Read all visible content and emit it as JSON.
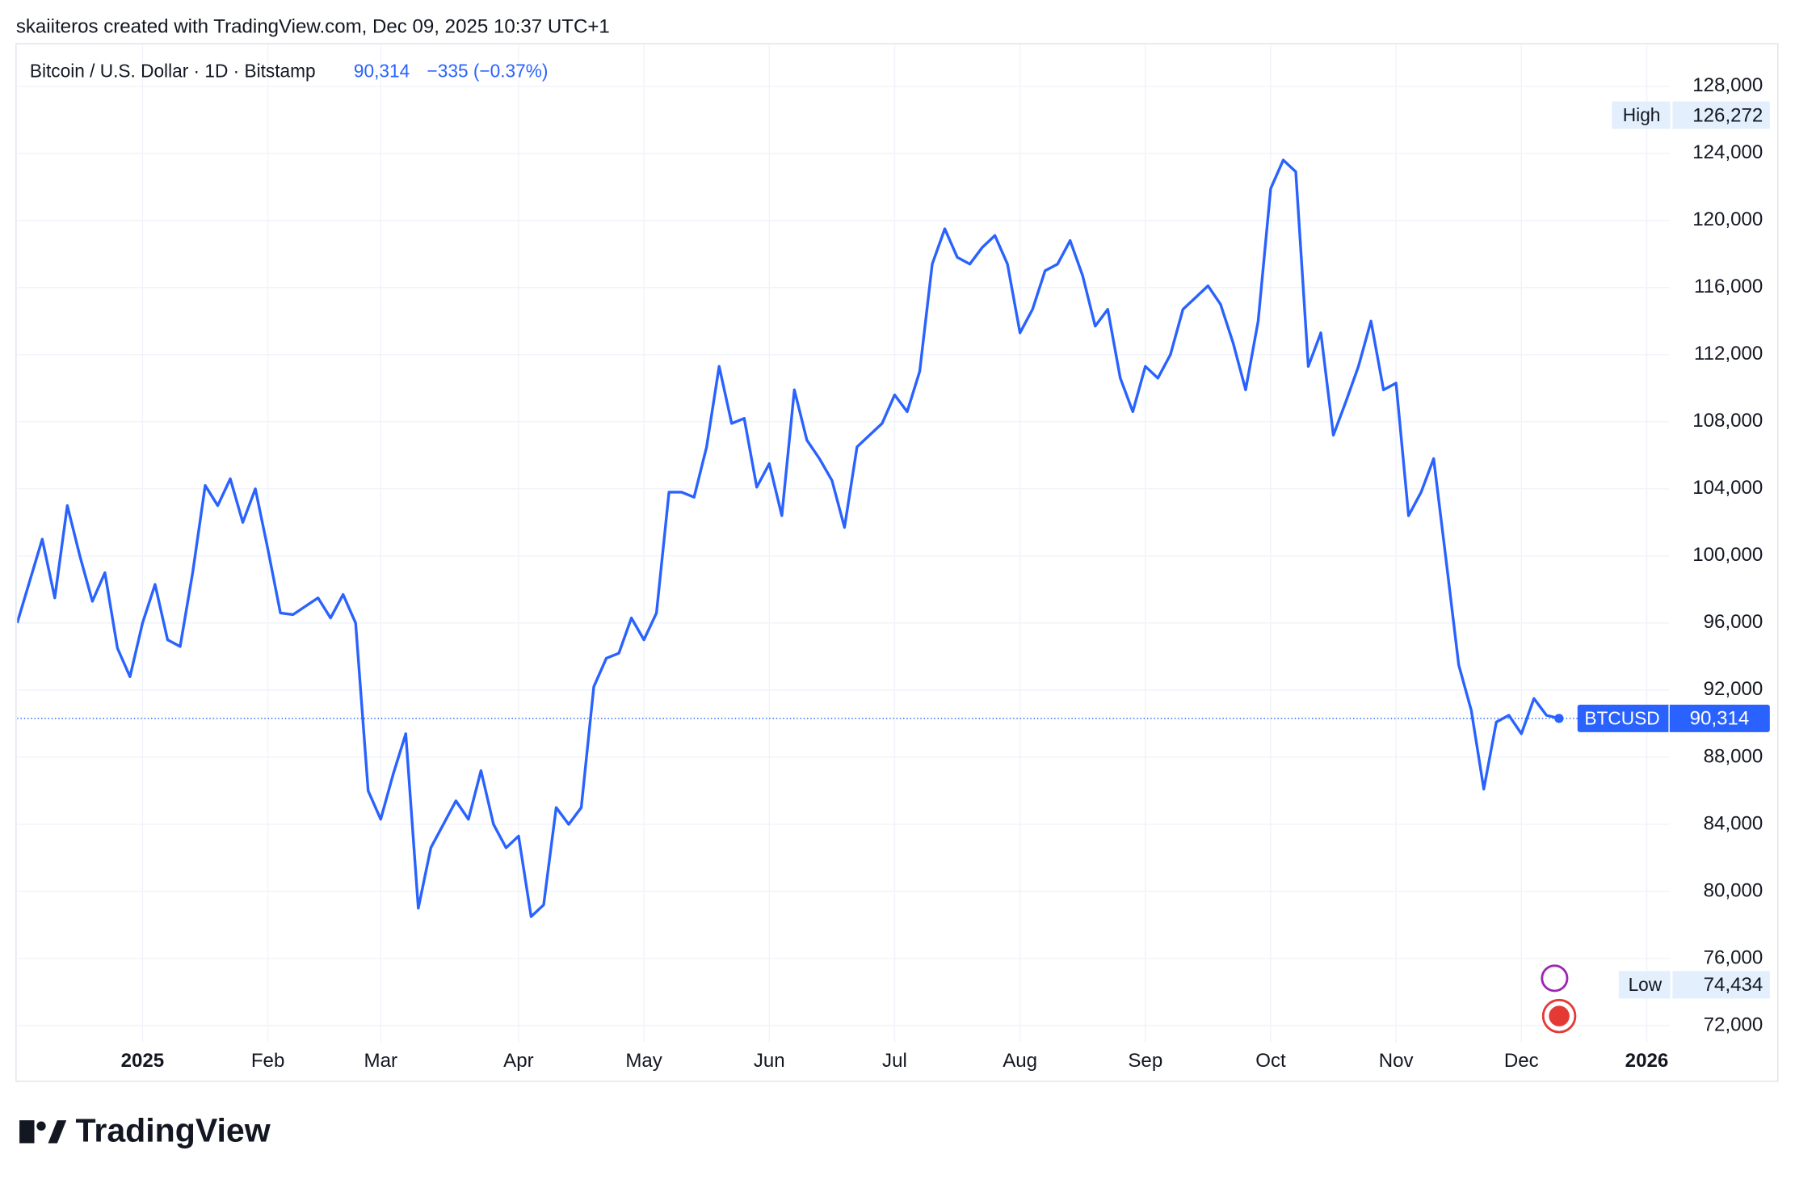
{
  "chart_data": {
    "type": "line",
    "caption": "skaiiteros created with TradingView.com, Dec 09, 2025 10:37 UTC+1",
    "title": "Bitcoin / U.S. Dollar · 1D · Bitstamp",
    "change": "−335 (−0.37%)",
    "brand": "TradingView",
    "high_label": "High",
    "low_label": "Low",
    "high": {
      "value": 126272,
      "label": "126,272"
    },
    "low": {
      "value": 74434,
      "label": "74,434"
    },
    "last": {
      "value": 90314,
      "label": "90,314"
    },
    "categories": [
      null,
      null,
      null,
      null,
      null,
      null,
      null,
      null,
      null,
      null,
      "2025",
      null,
      null,
      null,
      null,
      null,
      null,
      null,
      null,
      null,
      "Feb",
      null,
      null,
      null,
      null,
      null,
      null,
      null,
      null,
      "Mar",
      null,
      null,
      null,
      null,
      null,
      null,
      null,
      null,
      null,
      null,
      "Apr",
      null,
      null,
      null,
      null,
      null,
      null,
      null,
      null,
      null,
      "May",
      null,
      null,
      null,
      null,
      null,
      null,
      null,
      null,
      null,
      "Jun",
      null,
      null,
      null,
      null,
      null,
      null,
      null,
      null,
      null,
      "Jul",
      null,
      null,
      null,
      null,
      null,
      null,
      null,
      null,
      null,
      "Aug",
      null,
      null,
      null,
      null,
      null,
      null,
      null,
      null,
      null,
      "Sep",
      null,
      null,
      null,
      null,
      null,
      null,
      null,
      null,
      null,
      "Oct",
      null,
      null,
      null,
      null,
      null,
      null,
      null,
      null,
      null,
      "Nov",
      null,
      null,
      null,
      null,
      null,
      null,
      null,
      null,
      null,
      "Dec",
      null,
      null,
      null,
      null,
      null,
      null,
      null,
      null,
      null,
      "2026"
    ],
    "series": [
      {
        "name": "BTCUSD",
        "color": "#2962ff",
        "values": [
          96000,
          98500,
          101000,
          97500,
          103000,
          100000,
          97300,
          99000,
          94500,
          92800,
          96000,
          98300,
          95000,
          94600,
          99000,
          104200,
          103000,
          104600,
          102000,
          104000,
          100400,
          96600,
          96500,
          97000,
          97500,
          96300,
          97700,
          96000,
          86000,
          84300,
          87000,
          89400,
          79000,
          82600,
          84000,
          85400,
          84300,
          87200,
          84000,
          82600,
          83300,
          78500,
          79200,
          85000,
          84000,
          85000,
          92200,
          93900,
          94200,
          96300,
          95000,
          96600,
          103800,
          103800,
          103500,
          106500,
          111300,
          107900,
          108200,
          104100,
          105500,
          102400,
          109900,
          106900,
          105800,
          104500,
          101700,
          106500,
          107200,
          107900,
          109600,
          108600,
          111000,
          117400,
          119500,
          117800,
          117400,
          118400,
          119100,
          117400,
          113300,
          114700,
          117000,
          117400,
          118800,
          116700,
          113700,
          114700,
          110600,
          108600,
          111300,
          110600,
          112000,
          114700,
          115400,
          116100,
          115000,
          112700,
          109900,
          114000,
          121900,
          123600,
          122900,
          111300,
          113300,
          107200,
          109200,
          111300,
          114000,
          109900,
          110300,
          102400,
          103800,
          105800,
          99700,
          93500,
          90800,
          86100,
          90100,
          90500,
          89400,
          91500,
          90500,
          90314,
          null,
          null,
          null,
          null,
          null,
          null,
          null
        ]
      }
    ],
    "ylim": [
      71000,
      130400
    ],
    "yticks": [
      {
        "value": 72000,
        "label": "72,000"
      },
      {
        "value": 76000,
        "label": "76,000"
      },
      {
        "value": 80000,
        "label": "80,000"
      },
      {
        "value": 84000,
        "label": "84,000"
      },
      {
        "value": 88000,
        "label": "88,000"
      },
      {
        "value": 92000,
        "label": "92,000"
      },
      {
        "value": 96000,
        "label": "96,000"
      },
      {
        "value": 100000,
        "label": "100,000"
      },
      {
        "value": 104000,
        "label": "104,000"
      },
      {
        "value": 108000,
        "label": "108,000"
      },
      {
        "value": 112000,
        "label": "112,000"
      },
      {
        "value": 116000,
        "label": "116,000"
      },
      {
        "value": 120000,
        "label": "120,000"
      },
      {
        "value": 124000,
        "label": "124,000"
      },
      {
        "value": 128000,
        "label": "128,000"
      }
    ],
    "grid": true
  }
}
